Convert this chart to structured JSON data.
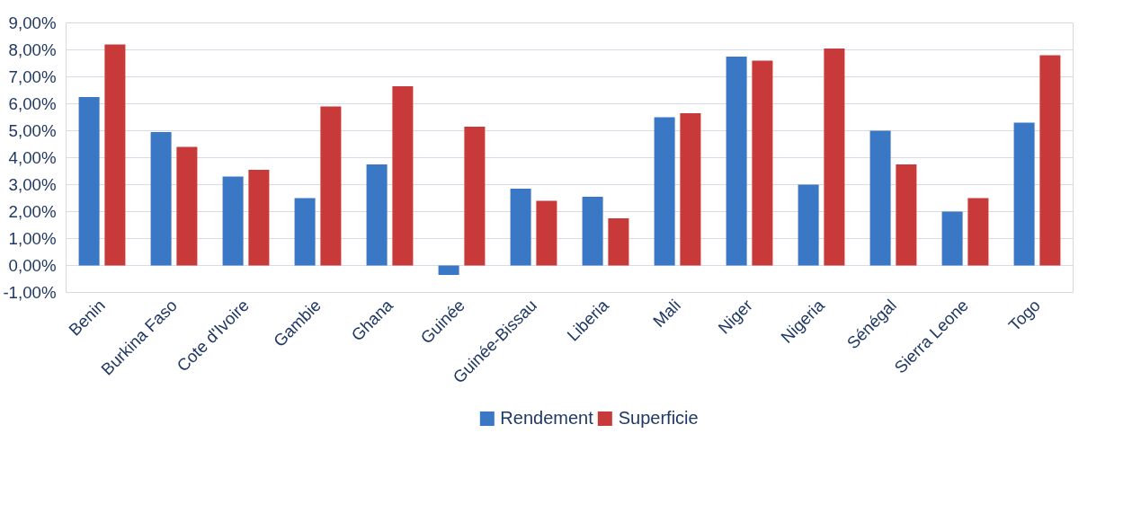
{
  "chart_data": {
    "type": "bar",
    "categories": [
      "Benin",
      "Burkina Faso",
      "Cote d'Ivoire",
      "Gambie",
      "Ghana",
      "Guinée",
      "Guinée-Bissau",
      "Liberia",
      "Mali",
      "Niger",
      "Nigeria",
      "Sénégal",
      "Sierra Leone",
      "Togo"
    ],
    "series": [
      {
        "name": "Rendement",
        "color": "#3a78c6",
        "values": [
          6.25,
          4.95,
          3.3,
          2.5,
          3.75,
          -0.35,
          2.85,
          2.55,
          5.5,
          7.75,
          3.0,
          5.0,
          2.0,
          5.3
        ]
      },
      {
        "name": "Superficie",
        "color": "#c83a3a",
        "values": [
          8.2,
          4.4,
          3.55,
          5.9,
          6.65,
          5.15,
          2.4,
          1.75,
          5.65,
          7.6,
          8.05,
          3.75,
          2.5,
          7.8
        ]
      }
    ],
    "ylim": [
      -1,
      9
    ],
    "yticks": [
      {
        "value": -1,
        "label": "-1,00%"
      },
      {
        "value": 0,
        "label": "0,00%"
      },
      {
        "value": 1,
        "label": "1,00%"
      },
      {
        "value": 2,
        "label": "2,00%"
      },
      {
        "value": 3,
        "label": "3,00%"
      },
      {
        "value": 4,
        "label": "4,00%"
      },
      {
        "value": 5,
        "label": "5,00%"
      },
      {
        "value": 6,
        "label": "6,00%"
      },
      {
        "value": 7,
        "label": "7,00%"
      },
      {
        "value": 8,
        "label": "8,00%"
      },
      {
        "value": 9,
        "label": "9,00%"
      }
    ],
    "grid": "y",
    "legend": "bottom"
  }
}
